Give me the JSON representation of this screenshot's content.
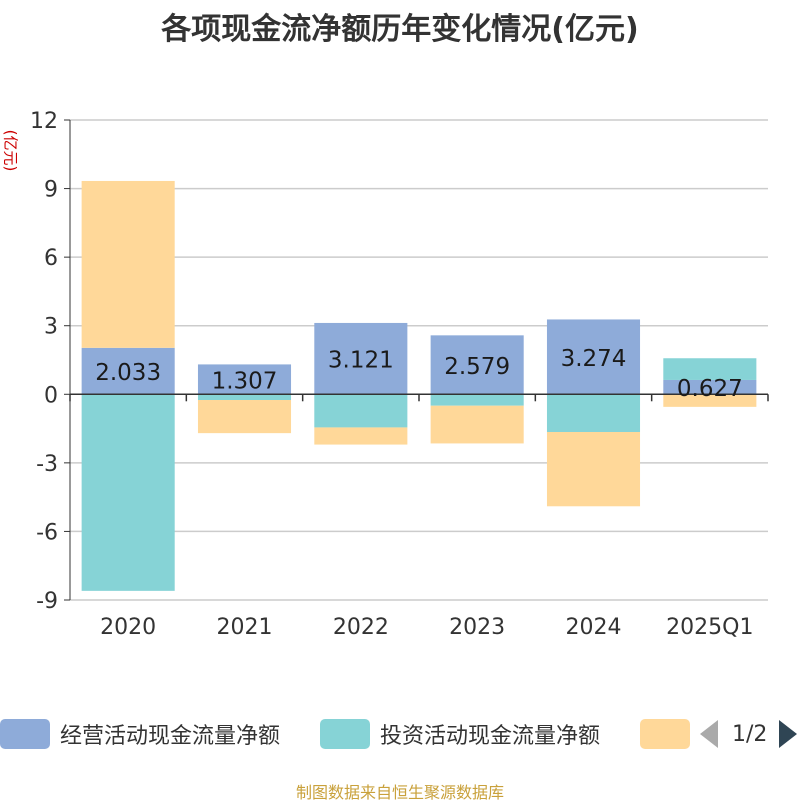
{
  "title": "各项现金流净额历年变化情况(亿元)",
  "unit_label": "(亿元)",
  "source": "制图数据来自恒生聚源数据库",
  "legend": {
    "items": [
      {
        "label": "经营活动现金流量净额",
        "color": "#8eabd9"
      },
      {
        "label": "投资活动现金流量净额",
        "color": "#86d3d6"
      },
      {
        "label": "",
        "color": "#ffd899"
      }
    ],
    "pager": "1/2"
  },
  "chart_data": {
    "type": "bar",
    "stacked": true,
    "categories": [
      "2020",
      "2021",
      "2022",
      "2023",
      "2024",
      "2025Q1"
    ],
    "ylim": [
      -9,
      12
    ],
    "yticks": [
      -9,
      -6,
      -3,
      0,
      3,
      6,
      9,
      12
    ],
    "grid": true,
    "series": [
      {
        "name": "经营活动现金流量净额",
        "color": "#8eabd9",
        "values": [
          2.033,
          1.307,
          3.121,
          2.579,
          3.274,
          0.627
        ],
        "labels": [
          "2.033",
          "1.307",
          "3.121",
          "2.579",
          "3.274",
          "0.627"
        ]
      },
      {
        "name": "投资活动现金流量净额",
        "color": "#86d3d6",
        "values": [
          -8.6,
          -0.25,
          -1.45,
          -0.5,
          -1.65,
          0.95
        ]
      },
      {
        "name": "",
        "color": "#ffd899",
        "values": [
          7.3,
          -1.45,
          -0.75,
          -1.65,
          -3.25,
          -0.55
        ]
      }
    ]
  }
}
